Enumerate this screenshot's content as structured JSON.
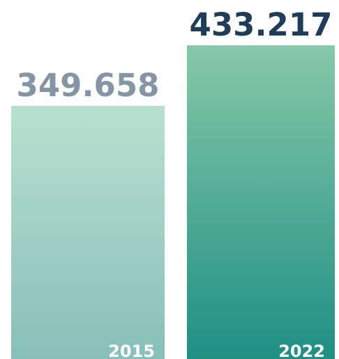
{
  "chart_data": {
    "type": "bar",
    "categories": [
      "2015",
      "2022"
    ],
    "values": [
      349658,
      433217
    ],
    "value_labels": [
      "349.658",
      "433.217"
    ],
    "title": "",
    "xlabel": "",
    "ylabel": "",
    "ylim": [
      0,
      433217
    ],
    "grid": false,
    "legend": "none",
    "colors": {
      "bar_2015_top": "#b9e0cf",
      "bar_2015_bottom": "#88bfba",
      "bar_2022_top": "#86c8a8",
      "bar_2022_bottom": "#1f8f84",
      "value_label_2015": "#8496a5",
      "value_label_2022": "#1f3c59",
      "category_label": "#ffffff"
    }
  }
}
